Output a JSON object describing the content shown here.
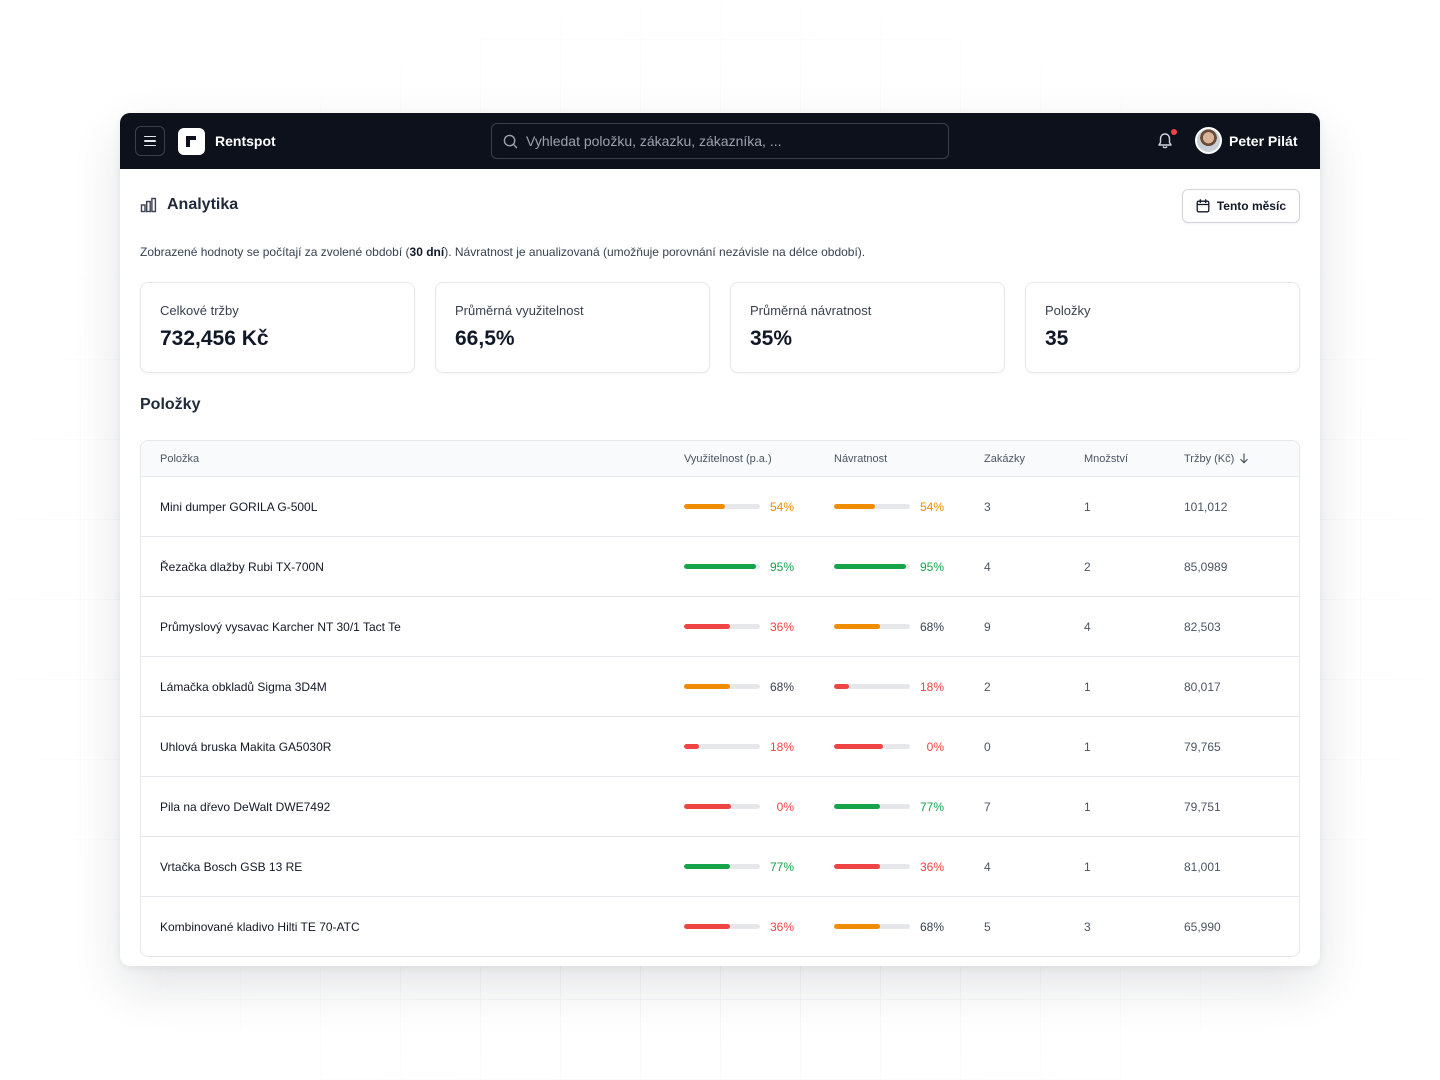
{
  "app": {
    "brand": "Rentspot",
    "search_placeholder": "Vyhledat položku, zákazku, zákazníka, ...",
    "user_name": "Peter Pilát",
    "notification_dot_color": "#ef4444"
  },
  "page": {
    "title": "Analytika",
    "period_button": "Tento měsíc",
    "note_before": "Zobrazené hodnoty se počítají za zvolené období (",
    "note_bold": "30 dní",
    "note_after": "). Návratnost je anualizovaná (umožňuje porovnání nezávisle na délce období)."
  },
  "cards": [
    {
      "label": "Celkové tržby",
      "value": "732,456 Kč"
    },
    {
      "label": "Průměrná využitelnost",
      "value": "66,5%"
    },
    {
      "label": "Průměrná návratnost",
      "value": "35%"
    },
    {
      "label": "Položky",
      "value": "35"
    }
  ],
  "table": {
    "title": "Položky",
    "columns": {
      "item": "Položka",
      "utilization": "Využitelnost (p.a.)",
      "return": "Návratnost",
      "orders": "Zakázky",
      "quantity": "Množství",
      "revenue": "Tržby (Kč)"
    },
    "colors": {
      "high": "#16a34a",
      "mid": "#f08c00",
      "low": "#ef4444"
    },
    "rows": [
      {
        "name": "Mini dumper GORILA G-500L",
        "util": "54%",
        "util_fill": 0.54,
        "util_level": "mid",
        "ret": "54%",
        "ret_fill": 0.54,
        "ret_level": "mid",
        "orders": "3",
        "qty": "1",
        "revenue": "101,012"
      },
      {
        "name": "Řezačka dlažby Rubi TX-700N",
        "util": "95%",
        "util_fill": 0.95,
        "util_level": "high",
        "ret": "95%",
        "ret_fill": 0.95,
        "ret_level": "high",
        "orders": "4",
        "qty": "2",
        "revenue": "85,0989"
      },
      {
        "name": "Průmyslový vysavac Karcher NT 30/1 Tact Te",
        "util": "36%",
        "util_fill": 0.6,
        "util_level": "low",
        "ret": "68%",
        "ret_fill": 0.6,
        "ret_level": "mid",
        "orders": "9",
        "qty": "4",
        "revenue": "82,503"
      },
      {
        "name": "Lámačka obkladů Sigma 3D4M",
        "util": "68%",
        "util_fill": 0.6,
        "util_level": "mid",
        "ret": "18%",
        "ret_fill": 0.2,
        "ret_level": "low",
        "orders": "2",
        "qty": "1",
        "revenue": "80,017"
      },
      {
        "name": "Uhlová bruska Makita GA5030R",
        "util": "18%",
        "util_fill": 0.2,
        "util_level": "low",
        "ret": "0%",
        "ret_fill": 0.65,
        "ret_level": "low",
        "orders": "0",
        "qty": "1",
        "revenue": "79,765"
      },
      {
        "name": "Pila na dřevo DeWalt DWE7492",
        "util": "0%",
        "util_fill": 0.62,
        "util_level": "low",
        "ret": "77%",
        "ret_fill": 0.6,
        "ret_level": "high",
        "orders": "7",
        "qty": "1",
        "revenue": "79,751"
      },
      {
        "name": "Vrtačka Bosch GSB 13 RE",
        "util": "77%",
        "util_fill": 0.6,
        "util_level": "high",
        "ret": "36%",
        "ret_fill": 0.6,
        "ret_level": "low",
        "orders": "4",
        "qty": "1",
        "revenue": "81,001"
      },
      {
        "name": "Kombinované kladivo Hilti TE 70-ATC",
        "util": "36%",
        "util_fill": 0.6,
        "util_level": "low",
        "ret": "68%",
        "ret_fill": 0.6,
        "ret_level": "mid",
        "orders": "5",
        "qty": "3",
        "revenue": "65,990"
      }
    ]
  }
}
